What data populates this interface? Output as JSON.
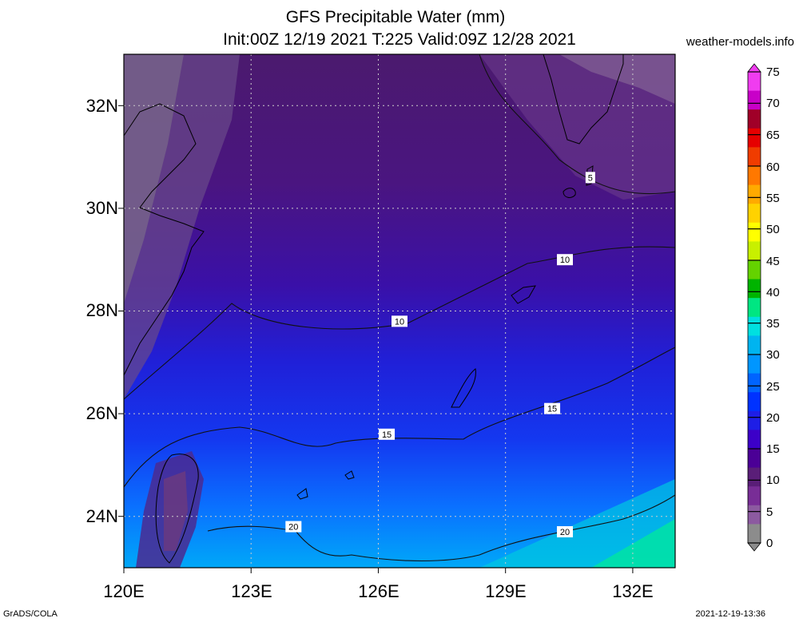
{
  "title_line1": "GFS Precipitable Water (mm)",
  "title_line2": "Init:00Z 12/19 2021 T:225 Valid:09Z 12/28 2021",
  "source_site": "weather-models.info",
  "software_credit": "GrADS/COLA",
  "generated_timestamp": "2021-12-19-13:36",
  "map": {
    "lon_range": [
      120,
      133
    ],
    "lat_range": [
      23,
      33
    ],
    "x_tick_labels": [
      "120E",
      "123E",
      "126E",
      "129E",
      "132E"
    ],
    "x_tick_values": [
      120,
      123,
      126,
      129,
      132
    ],
    "y_tick_labels": [
      "32N",
      "30N",
      "28N",
      "26N",
      "24N"
    ],
    "y_tick_values": [
      32,
      30,
      28,
      26,
      24
    ],
    "grid": "dotted",
    "contour_labels": [
      {
        "text": "5",
        "lon": 131.0,
        "lat": 30.6
      },
      {
        "text": "10",
        "lon": 130.4,
        "lat": 29.0
      },
      {
        "text": "10",
        "lon": 126.5,
        "lat": 27.8
      },
      {
        "text": "15",
        "lon": 130.1,
        "lat": 26.1
      },
      {
        "text": "15",
        "lon": 126.2,
        "lat": 25.6
      },
      {
        "text": "20",
        "lon": 124.0,
        "lat": 23.8
      },
      {
        "text": "20",
        "lon": 130.4,
        "lat": 23.7
      }
    ]
  },
  "colorbar": {
    "unit": "mm",
    "labels": [
      "75",
      "70",
      "65",
      "60",
      "55",
      "50",
      "45",
      "40",
      "35",
      "30",
      "25",
      "20",
      "15",
      "10",
      "5",
      "0"
    ],
    "colors": [
      "#f03cf0",
      "#c800c8",
      "#a00028",
      "#e60000",
      "#f03c00",
      "#ff7800",
      "#ffaa00",
      "#ffd200",
      "#ffff00",
      "#c8f000",
      "#64d200",
      "#00b400",
      "#00e682",
      "#00e0e0",
      "#00b4f0",
      "#0096ff",
      "#0064ff",
      "#0032ff",
      "#1e1ee6",
      "#3c00c8",
      "#4b0096",
      "#5a1e78",
      "#782d96",
      "#8c5aa0",
      "#8c8c8c"
    ]
  }
}
